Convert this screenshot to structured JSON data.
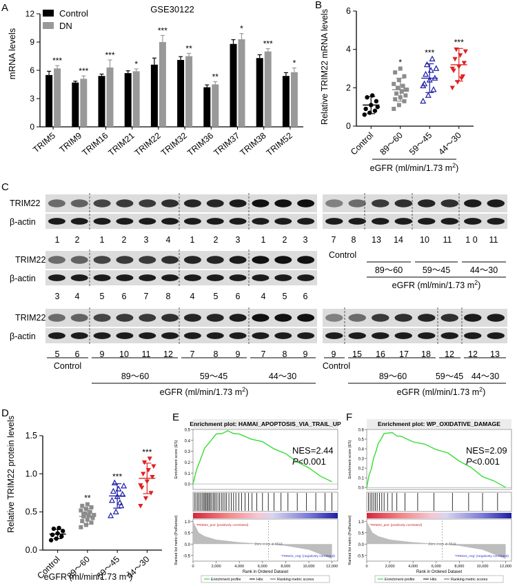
{
  "panels": {
    "A": {
      "letter": "A",
      "title": "GSE30122",
      "ylabel": "mRNA levels",
      "legend": [
        "Control",
        "DN"
      ]
    },
    "B": {
      "letter": "B",
      "ylabel": "Relative TRIM22 mRNA levels",
      "xlabel_base": "eGFR (ml/min/1.73 m",
      "xlabel_sup": "2",
      "xlabel_end": ")"
    },
    "C": {
      "letter": "C",
      "trim22": "TRIM22",
      "actin": "β-actin",
      "control": "Control",
      "g1": "89～60",
      "g2": "59～45",
      "g3": "44～30",
      "egfr_base": "eGFR (ml/min/1.73 m",
      "egfr_sup": "2",
      "egfr_end": ")",
      "rows_left": [
        [
          "1",
          "2",
          "1",
          "2",
          "3",
          "4",
          "1",
          "2",
          "3",
          "1",
          "2",
          "3"
        ],
        [
          "3",
          "4",
          "5",
          "6",
          "7",
          "8",
          "4",
          "5",
          "6",
          "4",
          "5",
          "6"
        ],
        [
          "5",
          "6",
          "9",
          "10",
          "11",
          "12",
          "7",
          "8",
          "9",
          "7",
          "8",
          "9"
        ]
      ],
      "rows_right": [
        [
          "7",
          "8",
          "13",
          "14",
          "10",
          "11",
          "1 0",
          "11"
        ],
        [
          "9",
          "15",
          "16",
          "17",
          "18",
          "12",
          "12",
          "13"
        ]
      ]
    },
    "D": {
      "letter": "D",
      "ylabel": "Relative TRIM22 protein levels",
      "xlabel_base": "eGFR (ml/min/1.73 m",
      "xlabel_sup": "2",
      "xlabel_end": ")"
    },
    "E": {
      "letter": "E",
      "title": "Enrichment plot: HAMAI_APOPTOSIS_VIA_TRAIL_UP",
      "nes": "NES=2.44",
      "p_italic": "P",
      "p_rest": "<0.001",
      "ylabel_top": "Enrichment score (ES)",
      "ylabel_bottom": "Ranked list metric (PreRanked)",
      "xlabel": "Rank in Ordered Dataset",
      "pos_label": "'TRIM22_pos' (positively correlated)",
      "neg_label": "'TRIM22_neg' (negatively correlated)",
      "zero_cross": "Zero cross at 6519",
      "legend": [
        "Enrichment profile",
        "Hits",
        "Ranking metric scores"
      ]
    },
    "F": {
      "letter": "F",
      "title": "Enrichment plot: WP_OXIDATIVE_DAMAGE",
      "nes": "NES=2.09",
      "p_italic": "P",
      "p_rest": "<0.001",
      "ylabel_top": "Enrichment score (ES)",
      "ylabel_bottom": "Ranked list metric (PreRanked)",
      "xlabel": "Rank in Ordered Dataset",
      "pos_label": "'TRIM22_pos' (positively correlated)",
      "neg_label": "'TRIM22_neg' (negatively correlated)",
      "zero_cross": "Zero cross at 6519",
      "legend": [
        "Enrichment profile",
        "Hits",
        "Ranking metric scores"
      ]
    }
  },
  "colors": {
    "control_bar": "#000000",
    "dn_bar": "#999999",
    "group1": "#8c8c8c",
    "group2": "#1a1aa8",
    "group3": "#e02020",
    "es_curve": "#33dd33",
    "blot_bg": "#dcdcdc"
  },
  "chart_data": [
    {
      "id": "A",
      "type": "bar",
      "title": "GSE30122",
      "ylabel": "mRNA levels",
      "ylim": [
        0,
        12
      ],
      "yticks": [
        0,
        3,
        6,
        9,
        12
      ],
      "categories": [
        "TRIM5",
        "TRIM9",
        "TRIM16",
        "TRIM21",
        "TRIM22",
        "TRIM32",
        "TRIM36",
        "TRIM37",
        "TRIM38",
        "TRIM52"
      ],
      "series": [
        {
          "name": "Control",
          "values": [
            5.5,
            4.7,
            5.4,
            5.7,
            6.6,
            7.1,
            4.2,
            8.8,
            7.3,
            5.4
          ],
          "err": [
            0.4,
            0.15,
            0.2,
            0.25,
            0.7,
            0.35,
            0.25,
            0.45,
            0.35,
            0.35
          ]
        },
        {
          "name": "DN",
          "values": [
            6.2,
            5.1,
            6.3,
            5.9,
            9.0,
            7.5,
            4.5,
            9.3,
            8.0,
            5.8
          ],
          "err": [
            0.3,
            0.3,
            0.8,
            0.25,
            0.7,
            0.3,
            0.3,
            0.6,
            0.3,
            0.45
          ]
        }
      ],
      "annotations": [
        "***",
        "***",
        "***",
        "*",
        "***",
        "**",
        "**",
        "*",
        "***",
        "*"
      ]
    },
    {
      "id": "B",
      "type": "scatter",
      "ylabel": "Relative TRIM22 mRNA levels",
      "ylim": [
        0,
        6
      ],
      "yticks": [
        0,
        2,
        4,
        6
      ],
      "categories": [
        "Control",
        "89~60",
        "59~45",
        "44~30"
      ],
      "means": [
        1.1,
        1.9,
        2.5,
        3.2
      ],
      "sd": [
        0.45,
        0.6,
        0.75,
        0.85
      ],
      "points": [
        [
          0.6,
          0.7,
          0.8,
          0.9,
          1.1,
          1.3,
          1.5,
          1.6,
          1.0
        ],
        [
          0.9,
          1.1,
          1.3,
          1.4,
          1.5,
          1.6,
          1.7,
          1.8,
          1.9,
          2.0,
          2.1,
          2.2,
          2.4,
          2.6,
          2.8,
          3.0,
          1.9
        ],
        [
          1.3,
          1.6,
          1.9,
          2.2,
          2.4,
          2.5,
          2.7,
          2.9,
          3.0,
          3.2,
          3.5,
          2.1
        ],
        [
          2.0,
          2.3,
          2.6,
          2.9,
          3.1,
          3.3,
          3.5,
          3.7,
          3.9,
          4.0,
          2.5,
          3.0
        ]
      ],
      "annotations": [
        "",
        "*",
        "***",
        "***"
      ]
    },
    {
      "id": "D",
      "type": "scatter",
      "ylabel": "Relative TRIM22 protein levels",
      "ylim": [
        0,
        1.5
      ],
      "yticks": [
        0.0,
        0.5,
        1.0,
        1.5
      ],
      "categories": [
        "Control",
        "89~60",
        "59~45",
        "44~30"
      ],
      "means": [
        0.21,
        0.44,
        0.71,
        0.94
      ],
      "sd": [
        0.06,
        0.1,
        0.16,
        0.2
      ],
      "points": [
        [
          0.13,
          0.15,
          0.18,
          0.2,
          0.22,
          0.25,
          0.28,
          0.29
        ],
        [
          0.3,
          0.33,
          0.36,
          0.38,
          0.4,
          0.42,
          0.44,
          0.45,
          0.46,
          0.48,
          0.5,
          0.52,
          0.54,
          0.56,
          0.58,
          0.6,
          0.43,
          0.47
        ],
        [
          0.45,
          0.5,
          0.58,
          0.65,
          0.7,
          0.73,
          0.77,
          0.8,
          0.84,
          0.88,
          0.62
        ],
        [
          0.58,
          0.68,
          0.75,
          0.82,
          0.9,
          0.96,
          1.0,
          1.05,
          1.1,
          1.15,
          1.2,
          0.85
        ]
      ],
      "annotations": [
        "",
        "**",
        "***",
        "***"
      ]
    },
    {
      "id": "E",
      "type": "line",
      "title": "Enrichment plot: HAMAI_APOPTOSIS_VIA_TRAIL_UP",
      "ylim": [
        -0.05,
        0.5
      ],
      "xlim": [
        0,
        12500
      ],
      "yticks": [
        0.0,
        0.1,
        0.2,
        0.3,
        0.4,
        0.5
      ],
      "xticks": [
        0,
        2000,
        4000,
        6000,
        8000,
        10000,
        12000
      ],
      "metric_yticks": [
        1.0,
        0.5,
        0.0,
        -0.5
      ],
      "es_x": [
        0,
        300,
        600,
        1000,
        1500,
        2000,
        2500,
        3000,
        3500,
        4000,
        5000,
        6000,
        7000,
        8000,
        9000,
        10000,
        11000,
        12000
      ],
      "es_y": [
        0.0,
        0.12,
        0.22,
        0.32,
        0.4,
        0.45,
        0.47,
        0.48,
        0.47,
        0.45,
        0.42,
        0.38,
        0.33,
        0.27,
        0.21,
        0.14,
        0.08,
        0.02
      ],
      "metric_x": [
        0,
        500,
        1000,
        2000,
        4000,
        6519,
        8000,
        10000,
        12000
      ],
      "metric_y": [
        1.0,
        0.5,
        0.35,
        0.2,
        0.08,
        0.0,
        -0.08,
        -0.25,
        -0.65
      ],
      "hits": [
        120,
        250,
        400,
        520,
        650,
        780,
        900,
        1000,
        1100,
        1200,
        1300,
        1400,
        1500,
        1620,
        1750,
        1880,
        2000,
        2150,
        2300,
        2450,
        2600,
        2750,
        2900,
        3100,
        3300,
        3500,
        3700,
        3950,
        4200,
        4500,
        4800,
        5100,
        5500,
        6000,
        6500,
        7000,
        7600,
        8200,
        9000,
        9800,
        10600,
        11400,
        12000
      ],
      "NES": 2.44
    },
    {
      "id": "F",
      "type": "line",
      "title": "Enrichment plot: WP_OXIDATIVE_DAMAGE",
      "ylim": [
        -0.02,
        0.6
      ],
      "xlim": [
        0,
        12500
      ],
      "yticks": [
        0.0,
        0.1,
        0.2,
        0.3,
        0.4,
        0.5,
        0.6
      ],
      "xticks": [
        0,
        2000,
        4000,
        6000,
        8000,
        10000,
        12000
      ],
      "metric_yticks": [
        1.0,
        0.5,
        0.0,
        -0.5
      ],
      "es_x": [
        0,
        200,
        400,
        600,
        800,
        1000,
        1200,
        1500,
        1800,
        2200,
        2600,
        3000,
        4000,
        5000,
        6000,
        7000,
        8000,
        9000,
        10000,
        11000,
        12000
      ],
      "es_y": [
        0.0,
        0.12,
        0.2,
        0.3,
        0.38,
        0.45,
        0.5,
        0.55,
        0.57,
        0.56,
        0.54,
        0.52,
        0.48,
        0.44,
        0.4,
        0.35,
        0.28,
        0.2,
        0.12,
        0.06,
        0.0
      ],
      "metric_x": [
        0,
        500,
        1000,
        2000,
        4000,
        6519,
        8000,
        10000,
        12000
      ],
      "metric_y": [
        1.0,
        0.5,
        0.35,
        0.2,
        0.08,
        0.0,
        -0.08,
        -0.25,
        -0.65
      ],
      "hits": [
        150,
        300,
        450,
        600,
        750,
        900,
        1100,
        1300,
        1500,
        1800,
        2200,
        2600,
        3300,
        4400,
        5800,
        7400,
        8800,
        10000,
        11300
      ],
      "NES": 2.09
    }
  ]
}
